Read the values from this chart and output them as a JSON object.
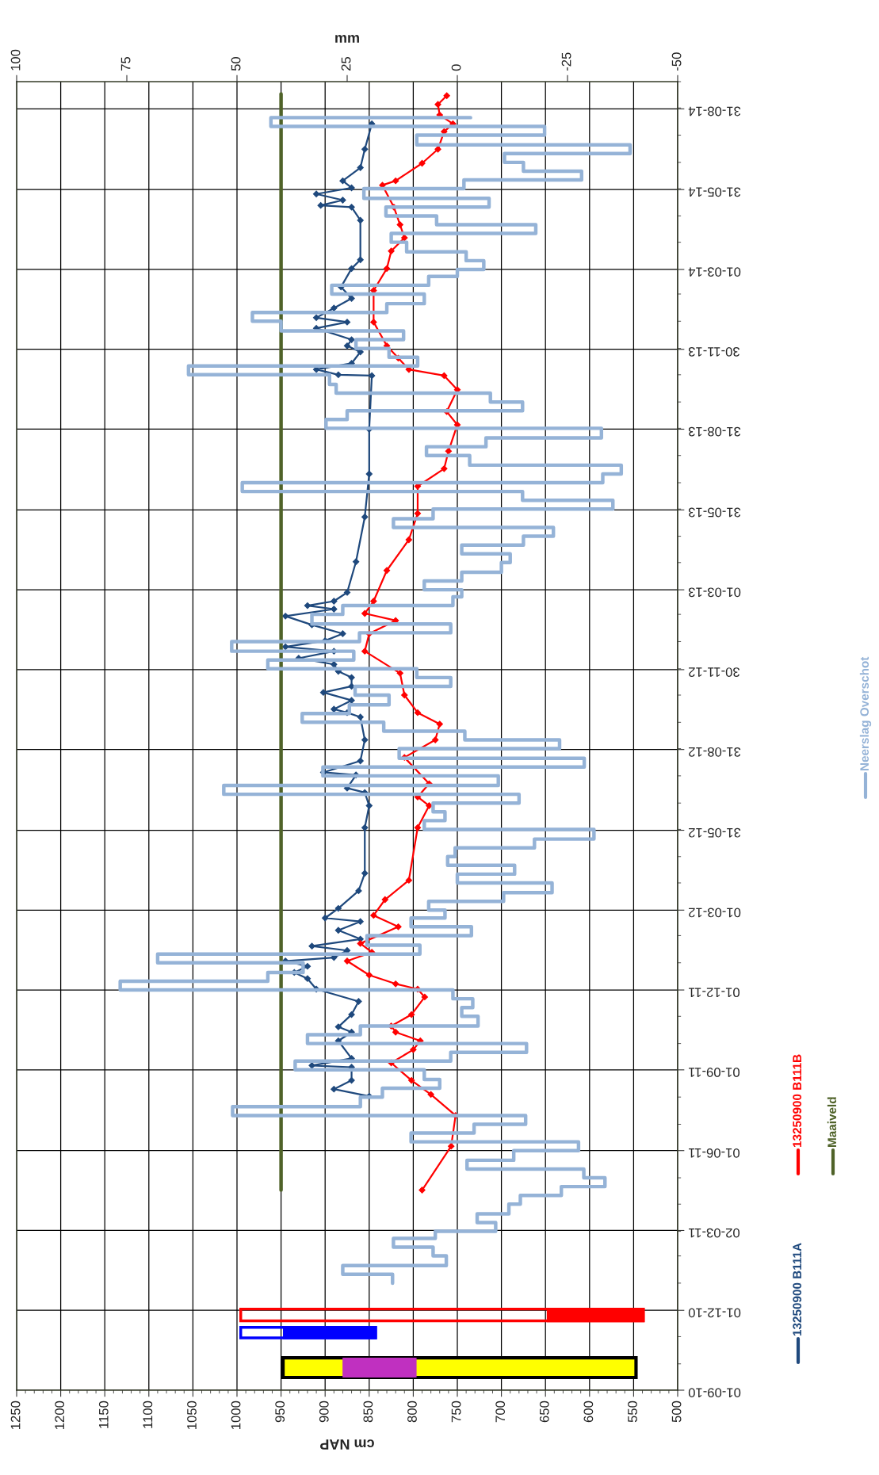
{
  "chart_data": {
    "type": "line",
    "orientation": "horizontal",
    "xlabel": "cm NAP",
    "x2label": "mm",
    "ylim": [
      "2010-09-01",
      "2014-10-01"
    ],
    "yticks": [
      {
        "value": "2010-09-01",
        "label": "01-09-10"
      },
      {
        "value": "2010-12-01",
        "label": "01-12-10"
      },
      {
        "value": "2011-03-02",
        "label": "02-03-11"
      },
      {
        "value": "2011-06-01",
        "label": "01-06-11"
      },
      {
        "value": "2011-09-01",
        "label": "01-09-11"
      },
      {
        "value": "2011-12-01",
        "label": "01-12-11"
      },
      {
        "value": "2012-03-01",
        "label": "01-03-12"
      },
      {
        "value": "2012-05-31",
        "label": "31-05-12"
      },
      {
        "value": "2012-08-31",
        "label": "31-08-12"
      },
      {
        "value": "2012-11-30",
        "label": "30-11-12"
      },
      {
        "value": "2013-03-01",
        "label": "01-03-13"
      },
      {
        "value": "2013-05-31",
        "label": "31-05-13"
      },
      {
        "value": "2013-08-31",
        "label": "31-08-13"
      },
      {
        "value": "2013-11-30",
        "label": "30-11-13"
      },
      {
        "value": "2014-03-01",
        "label": "01-03-14"
      },
      {
        "value": "2014-05-31",
        "label": "31-05-14"
      },
      {
        "value": "2014-08-31",
        "label": "31-08-14"
      }
    ],
    "xlim": [
      1250,
      500
    ],
    "xticks": [
      1250,
      1200,
      1150,
      1100,
      1050,
      1000,
      950,
      900,
      850,
      800,
      750,
      700,
      650,
      600,
      550,
      500
    ],
    "x2lim": [
      100,
      -50
    ],
    "x2ticks": [
      100,
      75,
      50,
      25,
      0,
      -25,
      -50
    ],
    "grid": true,
    "legend": "right",
    "series": [
      {
        "name": "13250900 B111A",
        "color": "#1f497d",
        "marker": "diamond",
        "x": [
          "2011-08-02",
          "2011-08-10",
          "2011-08-20",
          "2011-09-04",
          "2011-09-06",
          "2011-09-14",
          "2011-10-04",
          "2011-10-14",
          "2011-10-20",
          "2011-11-03",
          "2011-11-18",
          "2011-12-02",
          "2011-12-14",
          "2011-12-21",
          "2011-12-28",
          "2012-01-03",
          "2012-01-07",
          "2012-01-15",
          "2012-01-20",
          "2012-01-28",
          "2012-02-07",
          "2012-02-17",
          "2012-02-21",
          "2012-03-03",
          "2012-03-23",
          "2012-04-12",
          "2012-06-03",
          "2012-06-28",
          "2012-07-13",
          "2012-07-18",
          "2012-08-02",
          "2012-08-05",
          "2012-08-18",
          "2012-09-11",
          "2012-10-07",
          "2012-10-12",
          "2012-10-16",
          "2012-10-26",
          "2012-11-04",
          "2012-11-11",
          "2012-11-21",
          "2012-11-28",
          "2012-12-06",
          "2012-12-13",
          "2012-12-21",
          "2012-12-26",
          "2013-01-02",
          "2013-01-10",
          "2013-01-20",
          "2013-01-30",
          "2013-02-07",
          "2013-02-11",
          "2013-02-16",
          "2013-02-26",
          "2013-04-02",
          "2013-05-23",
          "2013-07-11",
          "2013-08-31",
          "2013-10-31",
          "2013-11-01",
          "2013-11-07",
          "2013-11-14",
          "2013-11-27",
          "2013-12-04",
          "2013-12-11",
          "2013-12-24",
          "2013-12-31",
          "2014-01-05",
          "2014-01-16",
          "2014-01-27",
          "2014-02-09",
          "2014-03-02",
          "2014-03-12",
          "2014-04-26",
          "2014-05-11",
          "2014-05-13",
          "2014-05-19",
          "2014-05-26",
          "2014-06-02",
          "2014-06-10",
          "2014-06-25",
          "2014-07-16",
          "2014-08-14"
        ],
        "values": [
          850,
          890,
          870,
          870,
          915,
          870,
          885,
          870,
          885,
          870,
          862,
          910,
          920,
          935,
          920,
          945,
          890,
          875,
          915,
          860,
          885,
          860,
          900,
          885,
          862,
          855,
          855,
          850,
          855,
          875,
          865,
          902,
          860,
          855,
          860,
          875,
          890,
          870,
          902,
          870,
          870,
          885,
          890,
          930,
          890,
          945,
          900,
          880,
          915,
          945,
          890,
          920,
          890,
          875,
          865,
          855,
          850,
          850,
          847,
          885,
          910,
          870,
          860,
          875,
          870,
          910,
          875,
          910,
          890,
          870,
          882,
          870,
          860,
          860,
          870,
          905,
          880,
          910,
          870,
          880,
          860,
          855,
          847
        ]
      },
      {
        "name": "13250900 B111B",
        "color": "#ff0000",
        "marker": "diamond",
        "x": [
          "2011-04-17",
          "2011-06-06",
          "2011-07-11",
          "2011-08-04",
          "2011-08-20",
          "2011-09-09",
          "2011-09-24",
          "2011-10-04",
          "2011-10-14",
          "2011-10-21",
          "2011-11-03",
          "2011-11-23",
          "2011-12-02",
          "2011-12-08",
          "2011-12-18",
          "2012-01-03",
          "2012-01-13",
          "2012-01-23",
          "2012-02-11",
          "2012-02-24",
          "2012-03-13",
          "2012-04-04",
          "2012-06-03",
          "2012-06-28",
          "2012-07-08",
          "2012-07-23",
          "2012-08-22",
          "2012-09-11",
          "2012-09-29",
          "2012-10-12",
          "2012-11-01",
          "2012-11-26",
          "2012-12-21",
          "2013-01-10",
          "2013-01-25",
          "2013-02-02",
          "2013-02-16",
          "2013-03-23",
          "2013-04-27",
          "2013-05-27",
          "2013-06-27",
          "2013-07-17",
          "2013-08-06",
          "2013-09-05",
          "2013-09-20",
          "2013-10-15",
          "2013-10-31",
          "2013-11-07",
          "2013-11-20",
          "2013-12-04",
          "2013-12-31",
          "2014-02-05",
          "2014-03-02",
          "2014-03-22",
          "2014-04-06",
          "2014-04-21",
          "2014-05-11",
          "2014-06-05",
          "2014-06-10",
          "2014-06-30",
          "2014-07-16",
          "2014-08-05",
          "2014-08-14",
          "2014-08-24",
          "2014-09-05",
          "2014-09-15"
        ],
        "values": [
          790,
          757,
          752,
          780,
          802,
          825,
          800,
          792,
          820,
          825,
          802,
          787,
          795,
          820,
          850,
          875,
          847,
          860,
          817,
          845,
          832,
          805,
          795,
          782,
          795,
          782,
          810,
          775,
          770,
          795,
          810,
          815,
          855,
          850,
          820,
          855,
          845,
          830,
          805,
          795,
          795,
          765,
          760,
          750,
          762,
          750,
          765,
          805,
          817,
          830,
          845,
          845,
          830,
          825,
          810,
          815,
          822,
          835,
          820,
          790,
          772,
          765,
          755,
          770,
          772,
          762
        ]
      },
      {
        "name": "Maaiveld",
        "color": "#4f6228",
        "x": [
          "2011-04-17",
          "2014-09-17"
        ],
        "values": [
          950,
          950
        ]
      },
      {
        "name": "Neerslag Overschot",
        "color": "#95b3d7",
        "type": "step",
        "axis": "x2",
        "x": [
          "2011-01-01",
          "2011-01-11",
          "2011-01-21",
          "2011-02-01",
          "2011-02-11",
          "2011-02-21",
          "2011-03-01",
          "2011-03-11",
          "2011-03-21",
          "2011-04-01",
          "2011-04-11",
          "2011-04-21",
          "2011-05-01",
          "2011-05-11",
          "2011-05-21",
          "2011-06-01",
          "2011-06-11",
          "2011-06-21",
          "2011-07-01",
          "2011-07-11",
          "2011-07-21",
          "2011-08-01",
          "2011-08-11",
          "2011-08-21",
          "2011-09-01",
          "2011-09-11",
          "2011-09-21",
          "2011-10-01",
          "2011-10-11",
          "2011-10-21",
          "2011-11-01",
          "2011-11-11",
          "2011-11-21",
          "2011-12-01",
          "2011-12-11",
          "2011-12-21",
          "2012-01-01",
          "2012-01-11",
          "2012-01-21",
          "2012-02-01",
          "2012-02-11",
          "2012-02-21",
          "2012-03-01",
          "2012-03-11",
          "2012-03-21",
          "2012-04-01",
          "2012-04-11",
          "2012-04-21",
          "2012-05-01",
          "2012-05-11",
          "2012-05-21",
          "2012-06-01",
          "2012-06-11",
          "2012-06-21",
          "2012-07-01",
          "2012-07-11",
          "2012-07-21",
          "2012-08-01",
          "2012-08-11",
          "2012-08-21",
          "2012-09-01",
          "2012-09-11",
          "2012-09-21",
          "2012-10-01",
          "2012-10-11",
          "2012-10-21",
          "2012-11-01",
          "2012-11-11",
          "2012-11-21",
          "2012-12-01",
          "2012-12-11",
          "2012-12-21",
          "2013-01-01",
          "2013-01-11",
          "2013-01-21",
          "2013-02-01",
          "2013-02-11",
          "2013-02-21",
          "2013-03-01",
          "2013-03-11",
          "2013-03-21",
          "2013-04-01",
          "2013-04-11",
          "2013-04-21",
          "2013-05-01",
          "2013-05-11",
          "2013-05-21",
          "2013-06-01",
          "2013-06-11",
          "2013-06-21",
          "2013-07-01",
          "2013-07-11",
          "2013-07-21",
          "2013-08-01",
          "2013-08-11",
          "2013-08-21",
          "2013-09-01",
          "2013-09-11",
          "2013-09-21",
          "2013-10-01",
          "2013-10-11",
          "2013-10-21",
          "2013-11-01",
          "2013-11-11",
          "2013-11-21",
          "2013-12-01",
          "2013-12-11",
          "2013-12-21",
          "2014-01-01",
          "2014-01-11",
          "2014-01-21",
          "2014-02-01",
          "2014-02-11",
          "2014-02-21",
          "2014-03-01",
          "2014-03-11",
          "2014-03-21",
          "2014-04-01",
          "2014-04-11",
          "2014-04-21",
          "2014-05-01",
          "2014-05-11",
          "2014-05-21",
          "2014-06-01",
          "2014-06-11",
          "2014-06-21",
          "2014-07-01",
          "2014-07-11",
          "2014-07-21",
          "2014-08-01",
          "2014-08-11",
          "2014-08-21"
        ],
        "values": [
          14.7,
          26,
          2.5,
          5.5,
          14.5,
          5,
          -8.7,
          -4.5,
          -11.7,
          -14.3,
          -23.6,
          -33.5,
          -28.7,
          -2.2,
          -12.8,
          -27.5,
          10.5,
          -3.8,
          -15.5,
          51,
          22,
          17,
          4,
          7.5,
          36.8,
          1.5,
          -15.7,
          34,
          22,
          -4.7,
          -1,
          -3.5,
          1,
          76.5,
          43,
          35,
          68,
          8.5,
          20.5,
          -3.2,
          10.5,
          2.8,
          6.5,
          -10.5,
          -21.5,
          0,
          -13,
          2.2,
          0.5,
          -17.5,
          -31,
          7.5,
          2.8,
          5.5,
          -14,
          53,
          -9.3,
          30.5,
          -28.8,
          13.2,
          -23.2,
          -1.7,
          16.7,
          35.2,
          24.5,
          15.5,
          23.2,
          1.5,
          9.2,
          43,
          23.5,
          51.2,
          22.2,
          1.5,
          33,
          26,
          1,
          -1,
          7.5,
          -1,
          -10,
          -12,
          -1,
          -15,
          -21.8,
          14.5,
          5.5,
          -35.3,
          -14.8,
          48.8,
          -33,
          -37.2,
          -2.8,
          7,
          -6.5,
          -32.7,
          29.8,
          25,
          -14.8,
          -7.5,
          27.5,
          29,
          61,
          9,
          15.5,
          23,
          12.2,
          40,
          46.5,
          16,
          7.5,
          28.5,
          6.5,
          0,
          -6,
          -2,
          11.5,
          15,
          -17.8,
          4.7,
          16.2,
          -7.2,
          21.2,
          -1.5,
          -28.2,
          -15,
          -10.7,
          -39.2,
          9.2,
          -19.8,
          42.3,
          -3
        ]
      }
    ]
  }
}
